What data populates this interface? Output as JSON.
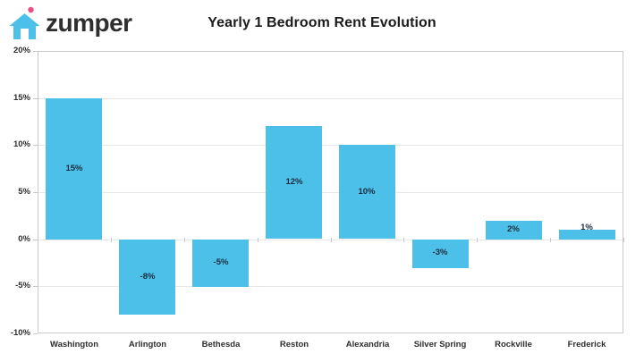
{
  "header": {
    "logo_text": "zumper",
    "title": "Yearly 1 Bedroom Rent Evolution"
  },
  "colors": {
    "bar": "#4CC0E8",
    "bar_value_label": "#1B2D3E",
    "grid_line": "#E7E7E7",
    "axis_border": "#C9C9C9",
    "axis_text": "#2E2E2E",
    "title_text": "#1B1B1B",
    "logo_text": "#2E2E2E",
    "logo_house": "#4CC0E8",
    "logo_door": "#FFFFFF",
    "logo_dot": "#EC4E81"
  },
  "chart_data": {
    "type": "bar",
    "title": "Yearly 1 Bedroom Rent Evolution",
    "categories": [
      "Washington",
      "Arlington",
      "Bethesda",
      "Reston",
      "Alexandria",
      "Silver Spring",
      "Rockville",
      "Frederick"
    ],
    "values": [
      15,
      -8,
      -5,
      12,
      10,
      -3,
      2,
      1
    ],
    "value_labels": [
      "15%",
      "-8%",
      "-5%",
      "12%",
      "10%",
      "-3%",
      "2%",
      "1%"
    ],
    "xlabel": "",
    "ylabel": "",
    "ylim": [
      -10,
      20
    ],
    "yticks": [
      {
        "value": 20,
        "label": "20%"
      },
      {
        "value": 15,
        "label": "15%"
      },
      {
        "value": 10,
        "label": "10%"
      },
      {
        "value": 5,
        "label": "5%"
      },
      {
        "value": 0,
        "label": "0%"
      },
      {
        "value": -5,
        "label": "-5%"
      },
      {
        "value": -10,
        "label": "-10%"
      }
    ],
    "grid": true,
    "legend": false,
    "baseline_value": 0
  }
}
